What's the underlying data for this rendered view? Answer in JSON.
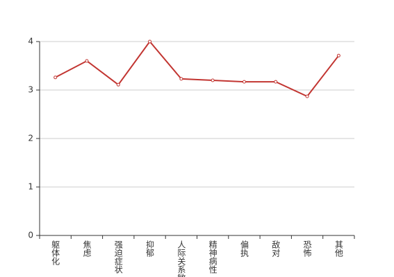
{
  "chart_data": {
    "type": "line",
    "categories": [
      "躯体化",
      "焦虑",
      "强迫症状",
      "抑郁",
      "人际关系敏感",
      "精神病性",
      "偏执",
      "敌对",
      "恐怖",
      "其他"
    ],
    "series": [
      {
        "color": "#c23531",
        "values": [
          3.26,
          3.6,
          3.11,
          4.0,
          3.23,
          3.2,
          3.17,
          3.17,
          2.87,
          3.71
        ]
      }
    ],
    "ylim": [
      0,
      4
    ],
    "yticks": [
      0,
      1,
      2,
      3,
      4
    ],
    "grid": true
  }
}
